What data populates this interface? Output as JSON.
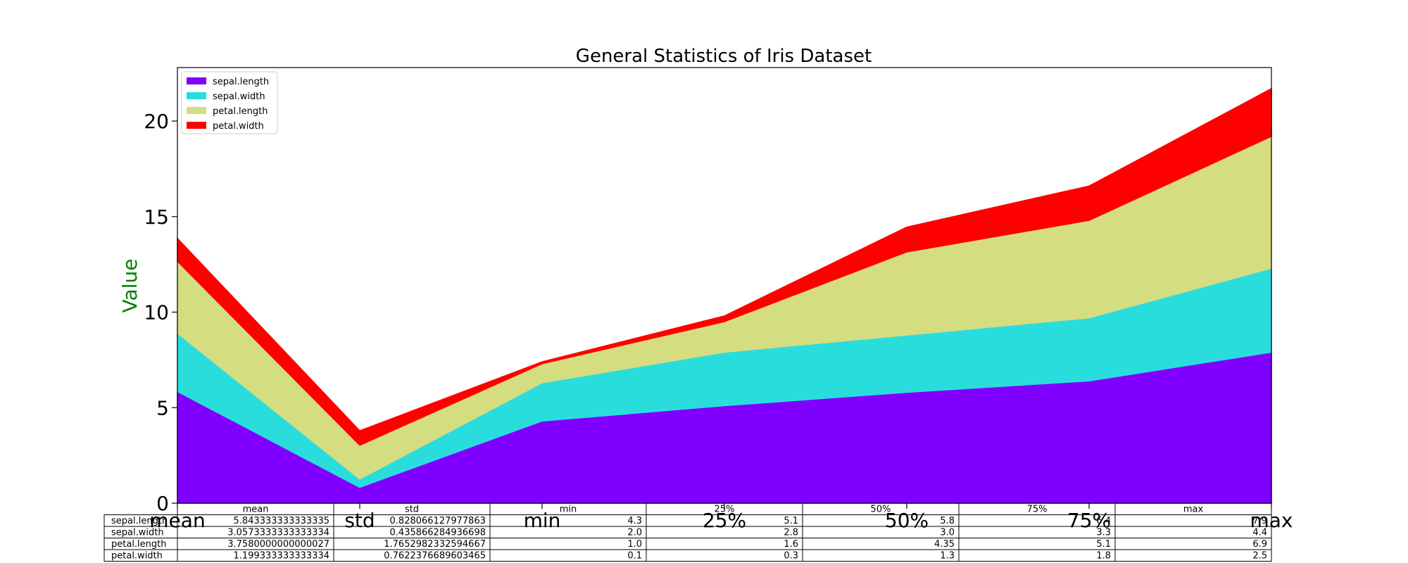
{
  "chart_data": {
    "type": "area",
    "stacked": true,
    "title": "General Statistics of Iris Dataset",
    "ylabel": "Value",
    "ylabel_color": "#008000",
    "xlabel": "",
    "categories": [
      "mean",
      "std",
      "min",
      "25%",
      "50%",
      "75%",
      "max"
    ],
    "yticks": [
      0,
      5,
      10,
      15,
      20
    ],
    "ylim": [
      0,
      22.8
    ],
    "grid": false,
    "legend": "top-left",
    "series": [
      {
        "name": "sepal.length",
        "color": "#8000ff",
        "values": [
          5.843333333333335,
          0.8280661279778629,
          4.3,
          5.1,
          5.8,
          6.4,
          7.9
        ],
        "table_values": [
          "5.843333333333335",
          "0.828066127977863",
          "4.3",
          "5.1",
          "5.8",
          "6.4",
          "7.9"
        ]
      },
      {
        "name": "sepal.width",
        "color": "#2adddd",
        "values": [
          3.0573333333333332,
          0.435866284936698,
          2.0,
          2.8,
          3.0,
          3.3,
          4.4
        ],
        "table_values": [
          "3.0573333333333334",
          "0.435866284936698",
          "2.0",
          "2.8",
          "3.0",
          "3.3",
          "4.4"
        ]
      },
      {
        "name": "petal.length",
        "color": "#d4dd80",
        "values": [
          3.7580000000000027,
          1.7652982332594667,
          1.0,
          1.6,
          4.35,
          5.1,
          6.9
        ],
        "table_values": [
          "3.7580000000000027",
          "1.7652982332594667",
          "1.0",
          "1.6",
          "4.35",
          "5.1",
          "6.9"
        ]
      },
      {
        "name": "petal.width",
        "color": "#ff0000",
        "values": [
          1.199333333333334,
          0.7622376689603465,
          0.1,
          0.3,
          1.3,
          1.8,
          2.5
        ],
        "table_values": [
          "1.199333333333334",
          "0.7622376689603465",
          "0.1",
          "0.3",
          "1.3",
          "1.8",
          "2.5"
        ]
      }
    ]
  }
}
